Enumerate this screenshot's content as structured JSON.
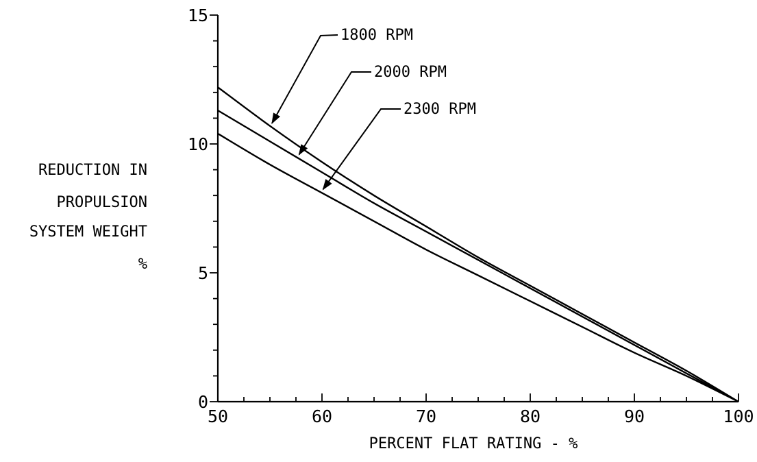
{
  "chart_data": {
    "type": "line",
    "title": "",
    "xlabel": "PERCENT FLAT RATING - %",
    "ylabel_lines": [
      "REDUCTION IN",
      "PROPULSION",
      "SYSTEM WEIGHT",
      "%"
    ],
    "xlim": [
      50,
      100
    ],
    "ylim": [
      0,
      15
    ],
    "x_ticks": [
      50,
      60,
      70,
      80,
      90,
      100
    ],
    "y_ticks": [
      0,
      5,
      10,
      15
    ],
    "x_minor_step": 2.5,
    "y_minor_step": 1,
    "grid": false,
    "legend": "none (labels with leader arrows)",
    "series": [
      {
        "name": "1800 RPM",
        "x": [
          50,
          55,
          60,
          65,
          70,
          75,
          80,
          85,
          90,
          95,
          100
        ],
        "y": [
          12.2,
          10.7,
          9.3,
          8.0,
          6.8,
          5.6,
          4.5,
          3.4,
          2.3,
          1.2,
          0
        ]
      },
      {
        "name": "2000 RPM",
        "x": [
          50,
          55,
          60,
          65,
          70,
          75,
          80,
          85,
          90,
          95,
          100
        ],
        "y": [
          11.3,
          10.1,
          8.9,
          7.7,
          6.6,
          5.5,
          4.4,
          3.3,
          2.2,
          1.1,
          0
        ]
      },
      {
        "name": "2300 RPM",
        "x": [
          50,
          55,
          60,
          65,
          70,
          75,
          80,
          85,
          90,
          95,
          100
        ],
        "y": [
          10.4,
          9.2,
          8.1,
          7.0,
          5.9,
          4.9,
          3.9,
          2.9,
          1.9,
          1.0,
          0
        ]
      }
    ]
  }
}
